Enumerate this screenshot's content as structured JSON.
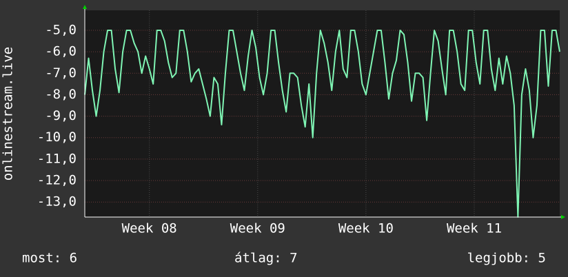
{
  "chart_data": {
    "type": "line",
    "ylabel": "onlinestream.live",
    "series": [
      {
        "name": "onlinestream.live",
        "color": "#7ff5b4",
        "values": [
          -8,
          -6.3,
          -7.8,
          -9,
          -7.8,
          -6,
          -5,
          -5,
          -6.8,
          -7.9,
          -6,
          -5,
          -5,
          -5.6,
          -6,
          -7,
          -6.2,
          -6.8,
          -7.5,
          -5,
          -5,
          -5.5,
          -6.5,
          -7.2,
          -7,
          -5,
          -5,
          -6,
          -7.4,
          -7,
          -6.8,
          -7.5,
          -8.2,
          -9,
          -7.2,
          -7.5,
          -9.4,
          -7,
          -5,
          -5,
          -6,
          -7,
          -7.8,
          -6.2,
          -5,
          -5.8,
          -7.2,
          -8,
          -7,
          -5,
          -5,
          -6.5,
          -7.8,
          -8.8,
          -7,
          -7,
          -7.2,
          -8.5,
          -9.5,
          -7.5,
          -10,
          -7,
          -5,
          -5.6,
          -6.5,
          -7.8,
          -6,
          -5,
          -6.8,
          -7.2,
          -5,
          -5,
          -6,
          -7.5,
          -8,
          -7,
          -6,
          -5,
          -5,
          -6.5,
          -8.2,
          -7,
          -6.4,
          -5,
          -5.2,
          -6.5,
          -8.3,
          -7,
          -7,
          -7.2,
          -9.2,
          -7,
          -5,
          -5.5,
          -6.8,
          -8,
          -5,
          -5,
          -6,
          -7.5,
          -7.8,
          -5,
          -5,
          -6.5,
          -7.5,
          -5,
          -5,
          -6.8,
          -7.8,
          -6.3,
          -7.5,
          -6.2,
          -7,
          -8.5,
          -13.7,
          -8,
          -6.8,
          -7.8,
          -10,
          -8.5,
          -5,
          -5,
          -7.6,
          -5,
          -5,
          -6
        ]
      }
    ],
    "xlim": [
      0,
      125
    ],
    "xticks": [
      {
        "value": 17,
        "label": "Week 08"
      },
      {
        "value": 45.5,
        "label": "Week 09"
      },
      {
        "value": 74,
        "label": "Week 10"
      },
      {
        "value": 102.5,
        "label": "Week 11"
      }
    ],
    "ylim": [
      -13.7,
      -4.07
    ],
    "yticks": [
      {
        "value": -5,
        "label": "-5,0"
      },
      {
        "value": -6,
        "label": "-6,0"
      },
      {
        "value": -7,
        "label": "-7,0"
      },
      {
        "value": -8,
        "label": "-8,0"
      },
      {
        "value": -9,
        "label": "-9,0"
      },
      {
        "value": -10,
        "label": "-10,0"
      },
      {
        "value": -11,
        "label": "-11,0"
      },
      {
        "value": -12,
        "label": "-12,0"
      },
      {
        "value": -13,
        "label": "-13,0"
      }
    ],
    "grid": true
  },
  "footer": {
    "current": "most: 6",
    "average": "átlag: 7",
    "best": "legjobb: 5"
  }
}
